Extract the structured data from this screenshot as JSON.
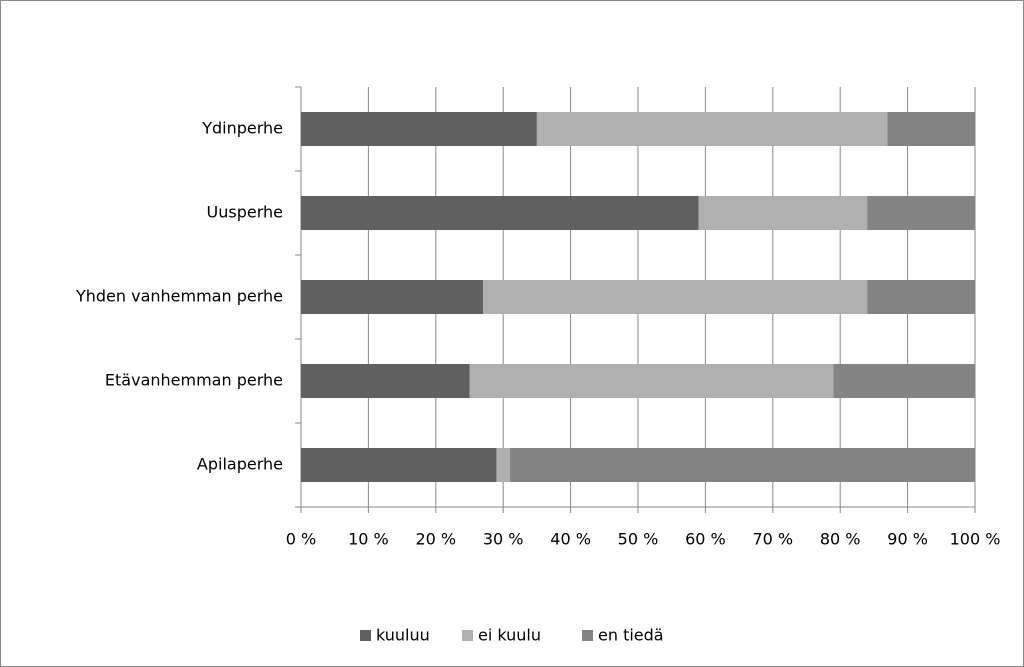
{
  "chart_data": {
    "type": "bar",
    "orientation": "horizontal",
    "stacked": true,
    "categories": [
      "Ydinperhe",
      "Uusperhe",
      "Yhden vanhemman perhe",
      "Etävanhemman perhe",
      "Apilaperhe"
    ],
    "series": [
      {
        "name": "kuuluu",
        "color": "#606060",
        "values": [
          35,
          59,
          27,
          25,
          29
        ]
      },
      {
        "name": "ei kuulu",
        "color": "#b0b0b0",
        "values": [
          52,
          25,
          57,
          54,
          2
        ]
      },
      {
        "name": "en tiedä",
        "color": "#848484",
        "values": [
          13,
          16,
          16,
          21,
          69
        ]
      }
    ],
    "xlim": [
      0,
      100
    ],
    "xticks": [
      {
        "value": 0,
        "label": "0 %"
      },
      {
        "value": 10,
        "label": "10 %"
      },
      {
        "value": 20,
        "label": "20 %"
      },
      {
        "value": 30,
        "label": "30 %"
      },
      {
        "value": 40,
        "label": "40 %"
      },
      {
        "value": 50,
        "label": "50 %"
      },
      {
        "value": 60,
        "label": "60 %"
      },
      {
        "value": 70,
        "label": "70 %"
      },
      {
        "value": 80,
        "label": "80 %"
      },
      {
        "value": 90,
        "label": "90 %"
      },
      {
        "value": 100,
        "label": "100 %"
      }
    ],
    "grid": true,
    "legend": "bottom"
  }
}
